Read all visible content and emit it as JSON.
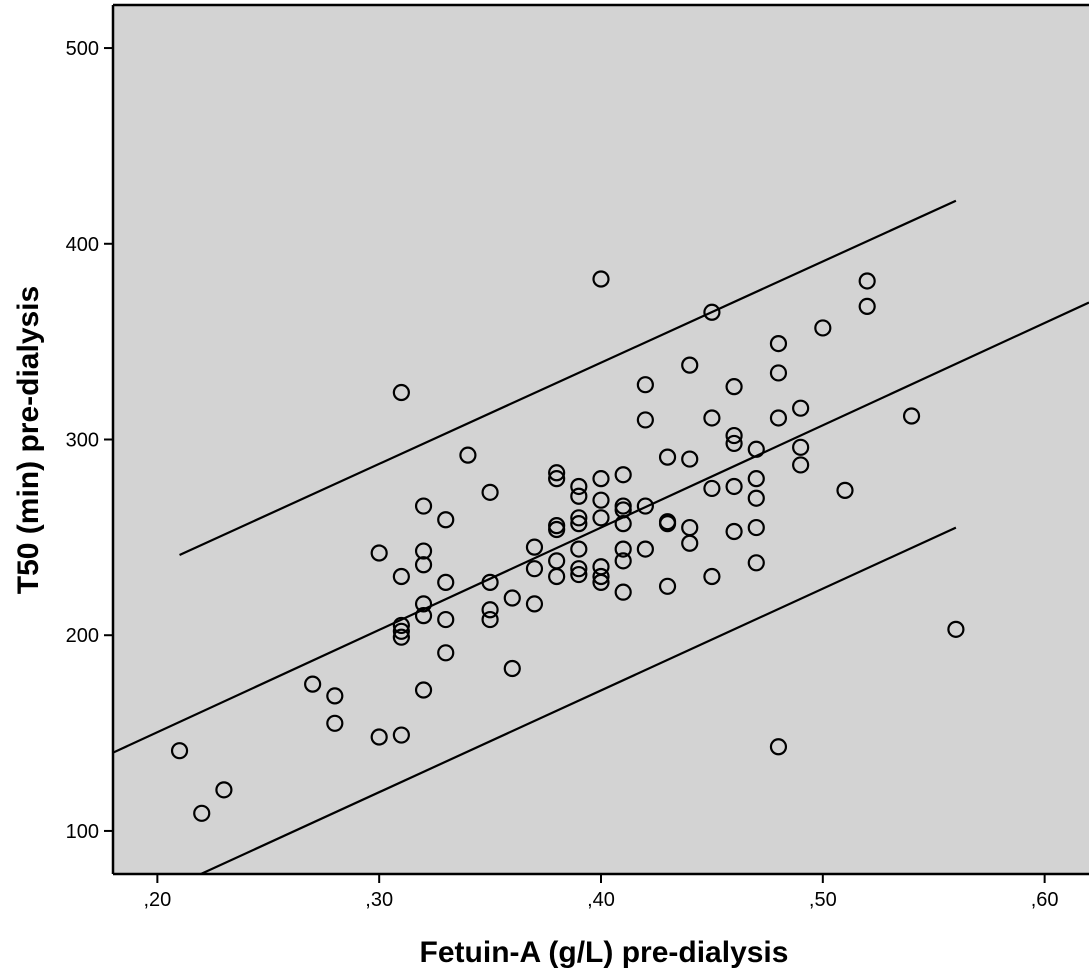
{
  "chart_data": {
    "type": "scatter",
    "title": "",
    "xlabel": "Fetuin-A (g/L) pre-dialysis",
    "ylabel": "T50 (min) pre-dialysis",
    "xlim": [
      0.18,
      0.62
    ],
    "ylim": [
      78,
      522
    ],
    "x_ticks": [
      0.2,
      0.3,
      0.4,
      0.5,
      0.6
    ],
    "x_tick_labels": [
      ",20",
      ",30",
      ",40",
      ",50",
      ",60"
    ],
    "y_ticks": [
      100,
      200,
      300,
      400,
      500
    ],
    "y_tick_labels": [
      "100",
      "200",
      "300",
      "400",
      "500"
    ],
    "grid": false,
    "background_color": "#d3d3d3",
    "points": [
      {
        "x": 0.21,
        "y": 141
      },
      {
        "x": 0.22,
        "y": 109
      },
      {
        "x": 0.23,
        "y": 121
      },
      {
        "x": 0.27,
        "y": 175
      },
      {
        "x": 0.28,
        "y": 169
      },
      {
        "x": 0.28,
        "y": 155
      },
      {
        "x": 0.3,
        "y": 242
      },
      {
        "x": 0.3,
        "y": 148
      },
      {
        "x": 0.31,
        "y": 324
      },
      {
        "x": 0.31,
        "y": 230
      },
      {
        "x": 0.31,
        "y": 205
      },
      {
        "x": 0.31,
        "y": 202
      },
      {
        "x": 0.31,
        "y": 199
      },
      {
        "x": 0.31,
        "y": 149
      },
      {
        "x": 0.32,
        "y": 266
      },
      {
        "x": 0.32,
        "y": 243
      },
      {
        "x": 0.32,
        "y": 236
      },
      {
        "x": 0.32,
        "y": 216
      },
      {
        "x": 0.32,
        "y": 210
      },
      {
        "x": 0.32,
        "y": 172
      },
      {
        "x": 0.33,
        "y": 259
      },
      {
        "x": 0.33,
        "y": 227
      },
      {
        "x": 0.33,
        "y": 208
      },
      {
        "x": 0.33,
        "y": 191
      },
      {
        "x": 0.34,
        "y": 292
      },
      {
        "x": 0.35,
        "y": 273
      },
      {
        "x": 0.35,
        "y": 227
      },
      {
        "x": 0.35,
        "y": 213
      },
      {
        "x": 0.35,
        "y": 208
      },
      {
        "x": 0.36,
        "y": 219
      },
      {
        "x": 0.36,
        "y": 183
      },
      {
        "x": 0.37,
        "y": 245
      },
      {
        "x": 0.37,
        "y": 234
      },
      {
        "x": 0.37,
        "y": 216
      },
      {
        "x": 0.38,
        "y": 283
      },
      {
        "x": 0.38,
        "y": 280
      },
      {
        "x": 0.38,
        "y": 256
      },
      {
        "x": 0.38,
        "y": 254
      },
      {
        "x": 0.38,
        "y": 238
      },
      {
        "x": 0.38,
        "y": 230
      },
      {
        "x": 0.39,
        "y": 276
      },
      {
        "x": 0.39,
        "y": 271
      },
      {
        "x": 0.39,
        "y": 260
      },
      {
        "x": 0.39,
        "y": 257
      },
      {
        "x": 0.39,
        "y": 244
      },
      {
        "x": 0.39,
        "y": 234
      },
      {
        "x": 0.39,
        "y": 231
      },
      {
        "x": 0.4,
        "y": 382
      },
      {
        "x": 0.4,
        "y": 280
      },
      {
        "x": 0.4,
        "y": 269
      },
      {
        "x": 0.4,
        "y": 260
      },
      {
        "x": 0.4,
        "y": 235
      },
      {
        "x": 0.4,
        "y": 230
      },
      {
        "x": 0.4,
        "y": 227
      },
      {
        "x": 0.41,
        "y": 282
      },
      {
        "x": 0.41,
        "y": 266
      },
      {
        "x": 0.41,
        "y": 264
      },
      {
        "x": 0.41,
        "y": 257
      },
      {
        "x": 0.41,
        "y": 244
      },
      {
        "x": 0.41,
        "y": 238
      },
      {
        "x": 0.41,
        "y": 222
      },
      {
        "x": 0.42,
        "y": 328
      },
      {
        "x": 0.42,
        "y": 310
      },
      {
        "x": 0.42,
        "y": 266
      },
      {
        "x": 0.42,
        "y": 244
      },
      {
        "x": 0.43,
        "y": 291
      },
      {
        "x": 0.43,
        "y": 258
      },
      {
        "x": 0.43,
        "y": 257
      },
      {
        "x": 0.43,
        "y": 225
      },
      {
        "x": 0.44,
        "y": 338
      },
      {
        "x": 0.44,
        "y": 290
      },
      {
        "x": 0.44,
        "y": 255
      },
      {
        "x": 0.44,
        "y": 247
      },
      {
        "x": 0.45,
        "y": 365
      },
      {
        "x": 0.45,
        "y": 311
      },
      {
        "x": 0.45,
        "y": 275
      },
      {
        "x": 0.45,
        "y": 230
      },
      {
        "x": 0.46,
        "y": 327
      },
      {
        "x": 0.46,
        "y": 302
      },
      {
        "x": 0.46,
        "y": 298
      },
      {
        "x": 0.46,
        "y": 276
      },
      {
        "x": 0.46,
        "y": 253
      },
      {
        "x": 0.47,
        "y": 295
      },
      {
        "x": 0.47,
        "y": 280
      },
      {
        "x": 0.47,
        "y": 270
      },
      {
        "x": 0.47,
        "y": 255
      },
      {
        "x": 0.47,
        "y": 237
      },
      {
        "x": 0.48,
        "y": 349
      },
      {
        "x": 0.48,
        "y": 334
      },
      {
        "x": 0.48,
        "y": 311
      },
      {
        "x": 0.48,
        "y": 143
      },
      {
        "x": 0.49,
        "y": 316
      },
      {
        "x": 0.49,
        "y": 296
      },
      {
        "x": 0.49,
        "y": 287
      },
      {
        "x": 0.5,
        "y": 357
      },
      {
        "x": 0.51,
        "y": 274
      },
      {
        "x": 0.52,
        "y": 381
      },
      {
        "x": 0.52,
        "y": 368
      },
      {
        "x": 0.54,
        "y": 312
      },
      {
        "x": 0.56,
        "y": 203
      }
    ],
    "lines": [
      {
        "role": "fit",
        "x": [
          0.18,
          0.62
        ],
        "y": [
          140,
          370
        ]
      },
      {
        "role": "upper-band",
        "x": [
          0.21,
          0.56
        ],
        "y": [
          241,
          422
        ]
      },
      {
        "role": "lower-band",
        "x": [
          0.21,
          0.56
        ],
        "y": [
          73,
          255
        ]
      }
    ]
  }
}
